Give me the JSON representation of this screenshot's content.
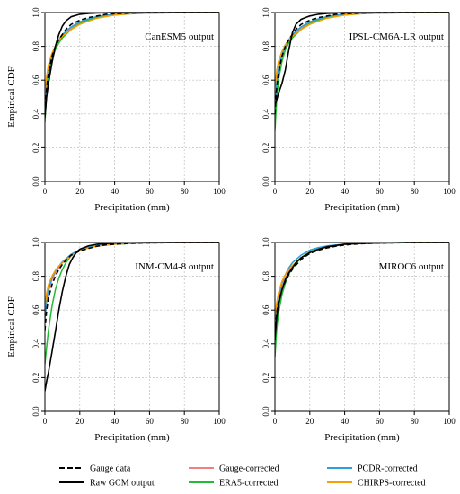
{
  "chart_data": [
    {
      "type": "line",
      "title": "CanESM5 output",
      "xlabel": "Precipitation (mm)",
      "ylabel": "Empirical CDF",
      "xlim": [
        0,
        100
      ],
      "ylim": [
        0,
        1
      ],
      "xticks": [
        "0",
        "20",
        "40",
        "60",
        "80",
        "100"
      ],
      "yticks": [
        "0.0",
        "0.2",
        "0.4",
        "0.6",
        "0.8",
        "1.0"
      ],
      "grid": true,
      "series": [
        {
          "key": "gauge",
          "x": [
            0,
            1,
            2,
            4,
            6,
            8,
            10,
            12,
            15,
            20,
            25,
            30,
            35,
            40,
            50,
            60,
            80,
            100
          ],
          "y": [
            0.4,
            0.55,
            0.64,
            0.74,
            0.8,
            0.84,
            0.87,
            0.9,
            0.93,
            0.955,
            0.97,
            0.98,
            0.99,
            0.993,
            0.997,
            1.0,
            1.0,
            1.0
          ]
        },
        {
          "key": "raw",
          "x": [
            0,
            1,
            2,
            4,
            6,
            8,
            10,
            12,
            15,
            20,
            25,
            30,
            40,
            60,
            100
          ],
          "y": [
            0.38,
            0.5,
            0.58,
            0.7,
            0.8,
            0.87,
            0.92,
            0.95,
            0.975,
            0.99,
            0.995,
            0.998,
            1.0,
            1.0,
            1.0
          ]
        },
        {
          "key": "gauge_corr",
          "x": [
            0,
            1,
            2,
            4,
            6,
            8,
            10,
            15,
            20,
            25,
            30,
            40,
            50,
            60,
            80,
            100
          ],
          "y": [
            0.4,
            0.57,
            0.66,
            0.74,
            0.79,
            0.83,
            0.86,
            0.91,
            0.94,
            0.96,
            0.975,
            0.99,
            0.995,
            0.998,
            1.0,
            1.0
          ]
        },
        {
          "key": "era5",
          "x": [
            0,
            1,
            2,
            4,
            6,
            8,
            10,
            15,
            20,
            25,
            30,
            40,
            50,
            60,
            80,
            100
          ],
          "y": [
            0.35,
            0.52,
            0.62,
            0.72,
            0.78,
            0.82,
            0.85,
            0.9,
            0.935,
            0.955,
            0.97,
            0.985,
            0.993,
            0.997,
            1.0,
            1.0
          ]
        },
        {
          "key": "pcdr",
          "x": [
            0,
            1,
            2,
            4,
            6,
            8,
            10,
            15,
            20,
            25,
            30,
            40,
            50,
            60,
            80,
            100
          ],
          "y": [
            0.42,
            0.58,
            0.67,
            0.75,
            0.8,
            0.84,
            0.87,
            0.915,
            0.945,
            0.963,
            0.977,
            0.99,
            0.995,
            0.998,
            1.0,
            1.0
          ]
        },
        {
          "key": "chirps",
          "x": [
            0,
            1,
            2,
            4,
            6,
            8,
            10,
            15,
            20,
            25,
            30,
            40,
            50,
            60,
            80,
            100
          ],
          "y": [
            0.5,
            0.62,
            0.69,
            0.76,
            0.8,
            0.84,
            0.86,
            0.9,
            0.93,
            0.95,
            0.967,
            0.985,
            0.993,
            0.997,
            1.0,
            1.0
          ]
        }
      ]
    },
    {
      "type": "line",
      "title": "IPSL-CM6A-LR output",
      "xlabel": "Precipitation (mm)",
      "ylabel": "",
      "xlim": [
        0,
        100
      ],
      "ylim": [
        0,
        1
      ],
      "xticks": [
        "0",
        "20",
        "40",
        "60",
        "80",
        "100"
      ],
      "yticks": [
        "0.0",
        "0.2",
        "0.4",
        "0.6",
        "0.8",
        "1.0"
      ],
      "grid": true,
      "series": [
        {
          "key": "gauge",
          "x": [
            0,
            1,
            2,
            4,
            6,
            8,
            10,
            12,
            15,
            20,
            25,
            30,
            35,
            40,
            50,
            60,
            80,
            100
          ],
          "y": [
            0.4,
            0.55,
            0.64,
            0.74,
            0.8,
            0.84,
            0.87,
            0.9,
            0.93,
            0.955,
            0.97,
            0.98,
            0.99,
            0.993,
            0.997,
            1.0,
            1.0,
            1.0
          ]
        },
        {
          "key": "raw",
          "x": [
            0,
            1,
            2,
            4,
            6,
            8,
            10,
            12,
            15,
            20,
            25,
            30,
            40,
            60,
            100
          ],
          "y": [
            0.45,
            0.48,
            0.52,
            0.58,
            0.66,
            0.78,
            0.88,
            0.93,
            0.96,
            0.98,
            0.99,
            0.995,
            1.0,
            1.0,
            1.0
          ]
        },
        {
          "key": "gauge_corr",
          "x": [
            0,
            1,
            2,
            4,
            6,
            8,
            10,
            15,
            20,
            25,
            30,
            40,
            50,
            60,
            80,
            100
          ],
          "y": [
            0.4,
            0.57,
            0.66,
            0.74,
            0.79,
            0.83,
            0.86,
            0.91,
            0.94,
            0.96,
            0.975,
            0.99,
            0.995,
            0.998,
            1.0,
            1.0
          ]
        },
        {
          "key": "era5",
          "x": [
            0,
            1,
            2,
            4,
            6,
            8,
            10,
            15,
            20,
            25,
            30,
            40,
            50,
            60,
            80,
            100
          ],
          "y": [
            0.3,
            0.48,
            0.6,
            0.71,
            0.78,
            0.82,
            0.85,
            0.9,
            0.935,
            0.955,
            0.97,
            0.985,
            0.993,
            0.997,
            1.0,
            1.0
          ]
        },
        {
          "key": "pcdr",
          "x": [
            0,
            1,
            2,
            4,
            6,
            8,
            10,
            15,
            20,
            25,
            30,
            40,
            50,
            60,
            80,
            100
          ],
          "y": [
            0.42,
            0.58,
            0.67,
            0.75,
            0.8,
            0.84,
            0.87,
            0.915,
            0.945,
            0.963,
            0.977,
            0.99,
            0.995,
            0.998,
            1.0,
            1.0
          ]
        },
        {
          "key": "chirps",
          "x": [
            0,
            1,
            2,
            4,
            6,
            8,
            10,
            15,
            20,
            25,
            30,
            40,
            50,
            60,
            80,
            100
          ],
          "y": [
            0.55,
            0.65,
            0.71,
            0.77,
            0.81,
            0.84,
            0.86,
            0.9,
            0.93,
            0.95,
            0.967,
            0.985,
            0.993,
            0.997,
            1.0,
            1.0
          ]
        }
      ]
    },
    {
      "type": "line",
      "title": "INM-CM4-8 output",
      "xlabel": "Precipitation (mm)",
      "ylabel": "Empirical CDF",
      "xlim": [
        0,
        100
      ],
      "ylim": [
        0,
        1
      ],
      "xticks": [
        "0",
        "20",
        "40",
        "60",
        "80",
        "100"
      ],
      "yticks": [
        "0.0",
        "0.2",
        "0.4",
        "0.6",
        "0.8",
        "1.0"
      ],
      "grid": true,
      "series": [
        {
          "key": "gauge",
          "x": [
            0,
            1,
            2,
            4,
            6,
            8,
            10,
            12,
            15,
            20,
            25,
            30,
            35,
            40,
            50,
            60,
            80,
            100
          ],
          "y": [
            0.48,
            0.6,
            0.67,
            0.75,
            0.8,
            0.84,
            0.87,
            0.895,
            0.925,
            0.95,
            0.965,
            0.978,
            0.986,
            0.99,
            0.996,
            0.998,
            1.0,
            1.0
          ]
        },
        {
          "key": "raw",
          "x": [
            0,
            1,
            2,
            4,
            6,
            8,
            10,
            12,
            14,
            16,
            18,
            20,
            25,
            30,
            40,
            60,
            100
          ],
          "y": [
            0.12,
            0.18,
            0.23,
            0.35,
            0.47,
            0.6,
            0.71,
            0.8,
            0.87,
            0.91,
            0.94,
            0.96,
            0.98,
            0.99,
            0.997,
            1.0,
            1.0
          ]
        },
        {
          "key": "gauge_corr",
          "x": [
            0,
            1,
            2,
            4,
            6,
            8,
            10,
            15,
            20,
            25,
            30,
            40,
            50,
            60,
            80,
            100
          ],
          "y": [
            0.55,
            0.65,
            0.71,
            0.78,
            0.82,
            0.85,
            0.88,
            0.925,
            0.955,
            0.97,
            0.98,
            0.99,
            0.995,
            0.998,
            1.0,
            1.0
          ]
        },
        {
          "key": "era5",
          "x": [
            0,
            1,
            2,
            4,
            6,
            8,
            10,
            12,
            15,
            20,
            25,
            30,
            40,
            60,
            100
          ],
          "y": [
            0.28,
            0.38,
            0.48,
            0.62,
            0.72,
            0.79,
            0.84,
            0.88,
            0.92,
            0.955,
            0.97,
            0.98,
            0.99,
            0.998,
            1.0
          ]
        },
        {
          "key": "pcdr",
          "x": [
            0,
            1,
            2,
            4,
            6,
            8,
            10,
            15,
            20,
            25,
            30,
            40,
            50,
            60,
            80,
            100
          ],
          "y": [
            0.55,
            0.66,
            0.72,
            0.79,
            0.83,
            0.86,
            0.885,
            0.93,
            0.957,
            0.972,
            0.982,
            0.992,
            0.996,
            0.998,
            1.0,
            1.0
          ]
        },
        {
          "key": "chirps",
          "x": [
            0,
            1,
            2,
            4,
            6,
            8,
            10,
            15,
            20,
            25,
            30,
            40,
            50,
            60,
            80,
            100
          ],
          "y": [
            0.62,
            0.7,
            0.75,
            0.8,
            0.835,
            0.86,
            0.88,
            0.92,
            0.95,
            0.967,
            0.978,
            0.99,
            0.995,
            0.998,
            1.0,
            1.0
          ]
        }
      ]
    },
    {
      "type": "line",
      "title": "MIROC6 output",
      "xlabel": "Precipitation (mm)",
      "ylabel": "",
      "xlim": [
        0,
        100
      ],
      "ylim": [
        0,
        1
      ],
      "xticks": [
        "0",
        "20",
        "40",
        "60",
        "80",
        "100"
      ],
      "yticks": [
        "0.0",
        "0.2",
        "0.4",
        "0.6",
        "0.8",
        "1.0"
      ],
      "grid": true,
      "series": [
        {
          "key": "gauge",
          "x": [
            0,
            1,
            2,
            4,
            6,
            8,
            10,
            12,
            15,
            20,
            25,
            30,
            35,
            40,
            50,
            60,
            80,
            100
          ],
          "y": [
            0.46,
            0.58,
            0.65,
            0.72,
            0.77,
            0.81,
            0.84,
            0.865,
            0.9,
            0.935,
            0.955,
            0.968,
            0.978,
            0.985,
            0.993,
            0.997,
            1.0,
            1.0
          ]
        },
        {
          "key": "raw",
          "x": [
            0,
            1,
            2,
            4,
            6,
            8,
            10,
            12,
            15,
            20,
            25,
            30,
            40,
            50,
            60,
            80,
            100
          ],
          "y": [
            0.42,
            0.55,
            0.63,
            0.72,
            0.78,
            0.82,
            0.85,
            0.88,
            0.91,
            0.94,
            0.96,
            0.975,
            0.99,
            0.995,
            0.998,
            1.0,
            1.0
          ]
        },
        {
          "key": "gauge_corr",
          "x": [
            0,
            1,
            2,
            4,
            6,
            8,
            10,
            15,
            20,
            25,
            30,
            40,
            50,
            60,
            80,
            100
          ],
          "y": [
            0.45,
            0.58,
            0.66,
            0.74,
            0.79,
            0.83,
            0.86,
            0.91,
            0.94,
            0.96,
            0.973,
            0.988,
            0.994,
            0.997,
            1.0,
            1.0
          ]
        },
        {
          "key": "era5",
          "x": [
            0,
            1,
            2,
            4,
            6,
            8,
            10,
            15,
            20,
            25,
            30,
            40,
            50,
            60,
            80,
            100
          ],
          "y": [
            0.32,
            0.48,
            0.58,
            0.69,
            0.76,
            0.81,
            0.85,
            0.91,
            0.945,
            0.965,
            0.978,
            0.99,
            0.995,
            0.998,
            1.0,
            1.0
          ]
        },
        {
          "key": "pcdr",
          "x": [
            0,
            1,
            2,
            4,
            6,
            8,
            10,
            15,
            20,
            25,
            30,
            40,
            50,
            60,
            80,
            100
          ],
          "y": [
            0.48,
            0.6,
            0.68,
            0.76,
            0.81,
            0.85,
            0.88,
            0.925,
            0.955,
            0.97,
            0.98,
            0.99,
            0.995,
            0.998,
            1.0,
            1.0
          ]
        },
        {
          "key": "chirps",
          "x": [
            0,
            1,
            2,
            4,
            6,
            8,
            10,
            15,
            20,
            25,
            30,
            40,
            50,
            60,
            80,
            100
          ],
          "y": [
            0.55,
            0.64,
            0.7,
            0.77,
            0.81,
            0.84,
            0.865,
            0.91,
            0.94,
            0.96,
            0.973,
            0.988,
            0.994,
            0.997,
            1.0,
            1.0
          ]
        }
      ]
    }
  ],
  "series_styles": [
    {
      "key": "gauge_corr",
      "color": "#f08080",
      "dash": "solid"
    },
    {
      "key": "era5",
      "color": "#22bb33",
      "dash": "solid"
    },
    {
      "key": "pcdr",
      "color": "#2b9fd9",
      "dash": "solid"
    },
    {
      "key": "chirps",
      "color": "#f5a000",
      "dash": "solid"
    },
    {
      "key": "gauge",
      "color": "#000000",
      "dash": "dashed"
    },
    {
      "key": "raw",
      "color": "#000000",
      "dash": "solid"
    }
  ],
  "legend": {
    "placement": "bottom",
    "items": [
      {
        "key": "gauge",
        "label": "Gauge data",
        "color": "#000000",
        "dash": "dashed"
      },
      {
        "key": "raw",
        "label": "Raw GCM output",
        "color": "#000000",
        "dash": "solid"
      },
      {
        "key": "gauge_corr",
        "label": "Gauge-corrected",
        "color": "#f08080",
        "dash": "solid"
      },
      {
        "key": "era5",
        "label": "ERA5-corrected",
        "color": "#22bb33",
        "dash": "solid"
      },
      {
        "key": "pcdr",
        "label": "PCDR-corrected",
        "color": "#2b9fd9",
        "dash": "solid"
      },
      {
        "key": "chirps",
        "label": "CHIRPS-corrected",
        "color": "#f5a000",
        "dash": "solid"
      }
    ]
  }
}
